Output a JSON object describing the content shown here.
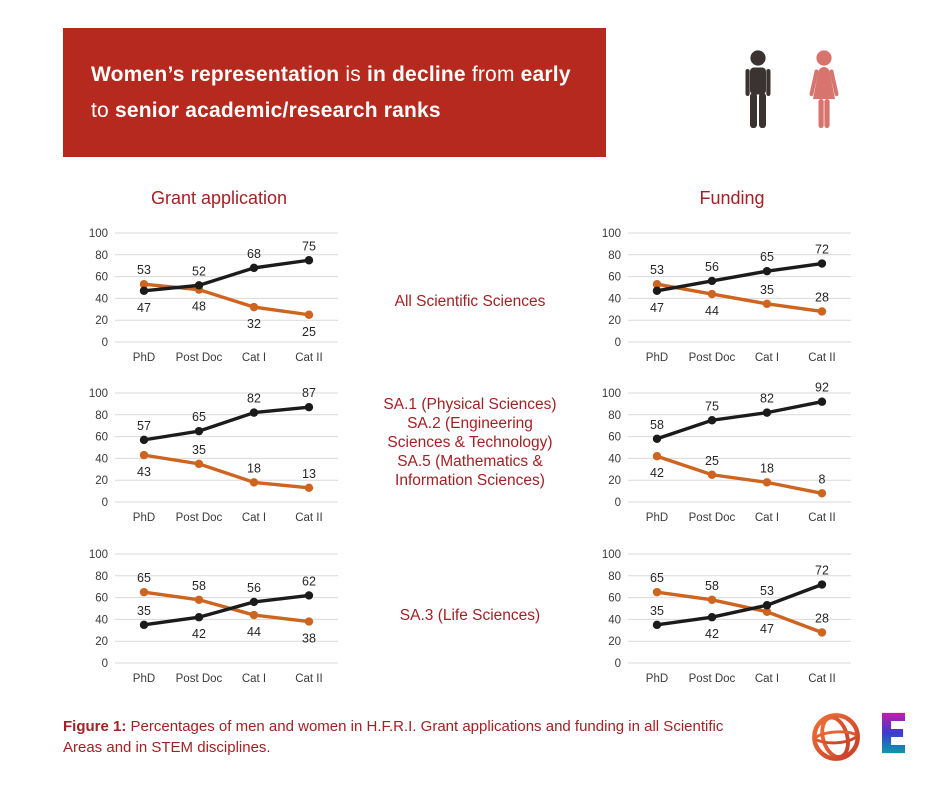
{
  "banner": {
    "bg_color": "#b5291f",
    "text_color": "#ffffff",
    "segments": [
      {
        "text": "Women’s representation",
        "bold": true
      },
      {
        "text": " is ",
        "bold": false
      },
      {
        "text": "in decline",
        "bold": true
      },
      {
        "text": " from ",
        "bold": false
      },
      {
        "text": "early",
        "bold": true
      },
      {
        "text": " to ",
        "bold": false
      },
      {
        "text": "senior academic/research ranks",
        "bold": true
      }
    ]
  },
  "legend_icons": {
    "man_icon_color": "#3a3331",
    "woman_icon_color": "#d7746e"
  },
  "columns": {
    "grant_title": "Grant application",
    "funding_title": "Funding"
  },
  "row_labels": [
    {
      "lines": [
        "All Scientific Sciences"
      ]
    },
    {
      "lines": [
        "SA.1 (Physical Sciences)",
        "SA.2 (Engineering",
        "Sciences & Technology)",
        "SA.5 (Mathematics &",
        "Information Sciences)"
      ]
    },
    {
      "lines": [
        "SA.3 (Life Sciences)"
      ]
    }
  ],
  "chart_style": {
    "men_color": "#1b1b1b",
    "women_color": "#cd6420",
    "grid_color": "#d9d9d9",
    "tick_color": "#3a3a3a",
    "label_color": "#262626",
    "ylim": [
      0,
      100
    ],
    "yticks": [
      100,
      80,
      60,
      40,
      20,
      0
    ],
    "grid": true,
    "legend_position": "none"
  },
  "chart_data": [
    {
      "id": "grant-all-sciences",
      "type": "line",
      "column": "Grant application",
      "row": "All Scientific Sciences",
      "categories": [
        "PhD",
        "Post Doc",
        "Cat I",
        "Cat II"
      ],
      "xlabel": "",
      "ylabel": "",
      "ylim": [
        0,
        100
      ],
      "series": [
        {
          "name": "Men",
          "color": "#1b1b1b",
          "values": [
            47,
            52,
            68,
            75
          ],
          "label_pos": [
            "below",
            "above",
            "above",
            "above"
          ]
        },
        {
          "name": "Women",
          "color": "#cd6420",
          "values": [
            53,
            48,
            32,
            25
          ],
          "label_pos": [
            "above",
            "below",
            "below",
            "below"
          ]
        }
      ]
    },
    {
      "id": "funding-all-sciences",
      "type": "line",
      "column": "Funding",
      "row": "All Scientific Sciences",
      "categories": [
        "PhD",
        "Post Doc",
        "Cat I",
        "Cat II"
      ],
      "xlabel": "",
      "ylabel": "",
      "ylim": [
        0,
        100
      ],
      "series": [
        {
          "name": "Men",
          "color": "#1b1b1b",
          "values": [
            47,
            56,
            65,
            72
          ],
          "label_pos": [
            "below",
            "above",
            "above",
            "above"
          ]
        },
        {
          "name": "Women",
          "color": "#cd6420",
          "values": [
            53,
            44,
            35,
            28
          ],
          "label_pos": [
            "above",
            "below",
            "above",
            "above"
          ]
        }
      ]
    },
    {
      "id": "grant-stem",
      "type": "line",
      "column": "Grant application",
      "row": "SA.1 / SA.2 / SA.5 (STEM)",
      "categories": [
        "PhD",
        "Post Doc",
        "Cat I",
        "Cat II"
      ],
      "xlabel": "",
      "ylabel": "",
      "ylim": [
        0,
        100
      ],
      "series": [
        {
          "name": "Men",
          "color": "#1b1b1b",
          "values": [
            57,
            65,
            82,
            87
          ],
          "label_pos": [
            "above",
            "above",
            "above",
            "above"
          ]
        },
        {
          "name": "Women",
          "color": "#cd6420",
          "values": [
            43,
            35,
            18,
            13
          ],
          "label_pos": [
            "below",
            "above",
            "above",
            "above"
          ]
        }
      ]
    },
    {
      "id": "funding-stem",
      "type": "line",
      "column": "Funding",
      "row": "SA.1 / SA.2 / SA.5 (STEM)",
      "categories": [
        "PhD",
        "Post Doc",
        "Cat I",
        "Cat II"
      ],
      "xlabel": "",
      "ylabel": "",
      "ylim": [
        0,
        100
      ],
      "series": [
        {
          "name": "Men",
          "color": "#1b1b1b",
          "values": [
            58,
            75,
            82,
            92
          ],
          "label_pos": [
            "above",
            "above",
            "above",
            "above"
          ]
        },
        {
          "name": "Women",
          "color": "#cd6420",
          "values": [
            42,
            25,
            18,
            8
          ],
          "label_pos": [
            "below",
            "above",
            "above",
            "above"
          ]
        }
      ]
    },
    {
      "id": "grant-life-sciences",
      "type": "line",
      "column": "Grant application",
      "row": "SA.3 (Life Sciences)",
      "categories": [
        "PhD",
        "Post Doc",
        "Cat I",
        "Cat II"
      ],
      "xlabel": "",
      "ylabel": "",
      "ylim": [
        0,
        100
      ],
      "series": [
        {
          "name": "Men",
          "color": "#1b1b1b",
          "values": [
            35,
            42,
            56,
            62
          ],
          "label_pos": [
            "above",
            "below",
            "above",
            "above"
          ]
        },
        {
          "name": "Women",
          "color": "#cd6420",
          "values": [
            65,
            58,
            44,
            38
          ],
          "label_pos": [
            "above",
            "above",
            "below",
            "below"
          ]
        }
      ]
    },
    {
      "id": "funding-life-sciences",
      "type": "line",
      "column": "Funding",
      "row": "SA.3 (Life Sciences)",
      "categories": [
        "PhD",
        "Post Doc",
        "Cat I",
        "Cat II"
      ],
      "xlabel": "",
      "ylabel": "",
      "ylim": [
        0,
        100
      ],
      "series": [
        {
          "name": "Men",
          "color": "#1b1b1b",
          "values": [
            35,
            42,
            53,
            72
          ],
          "label_pos": [
            "above",
            "below",
            "above",
            "above"
          ]
        },
        {
          "name": "Women",
          "color": "#cd6420",
          "values": [
            65,
            58,
            47,
            28
          ],
          "label_pos": [
            "above",
            "above",
            "below",
            "above"
          ]
        }
      ]
    }
  ],
  "caption": {
    "prefix": "Figure 1:",
    "rest": " Percentages of men and women in H.F.R.I. Grant applications and funding in all Scientific Areas and in STEM disciplines."
  },
  "logos": {
    "hfri_gradient": [
      "#ef7038",
      "#c63c28"
    ],
    "e_gradient": [
      "#c51cab",
      "#3b3ccf",
      "#0d9aa8"
    ]
  },
  "text_colors": {
    "headings_red": "#a32125"
  }
}
